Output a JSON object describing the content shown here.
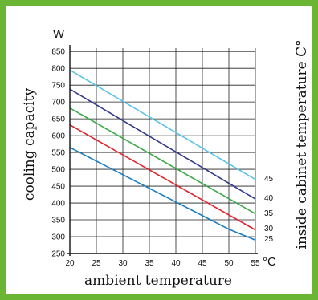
{
  "chart_data": {
    "type": "line",
    "title": "",
    "xlabel": "ambient temperature",
    "ylabel": "cooling capacity",
    "y_unit": "W",
    "x_unit": "°C",
    "series_axis_label": "inside cabinet temperature C°",
    "x_ticks": [
      "20",
      "25",
      "30",
      "35",
      "40",
      "45",
      "50",
      "55"
    ],
    "y_ticks": [
      "250",
      "300",
      "350",
      "400",
      "450",
      "500",
      "550",
      "600",
      "650",
      "700",
      "750",
      "800",
      "850"
    ],
    "xlim": [
      20,
      55
    ],
    "ylim": [
      250,
      860
    ],
    "grid": true,
    "series": [
      {
        "name": "45",
        "color": "#5bc3ea",
        "x": [
          20,
          55
        ],
        "y": [
          795,
          470
        ]
      },
      {
        "name": "40",
        "color": "#333a8c",
        "x": [
          20,
          55
        ],
        "y": [
          738,
          412
        ]
      },
      {
        "name": "35",
        "color": "#3aaa49",
        "x": [
          20,
          55
        ],
        "y": [
          682,
          368
        ]
      },
      {
        "name": "30",
        "color": "#e3222b",
        "x": [
          20,
          55
        ],
        "y": [
          632,
          320
        ]
      },
      {
        "name": "25",
        "color": "#1b7dc2",
        "x": [
          20,
          50,
          55
        ],
        "y": [
          565,
          322,
          290
        ]
      }
    ]
  }
}
